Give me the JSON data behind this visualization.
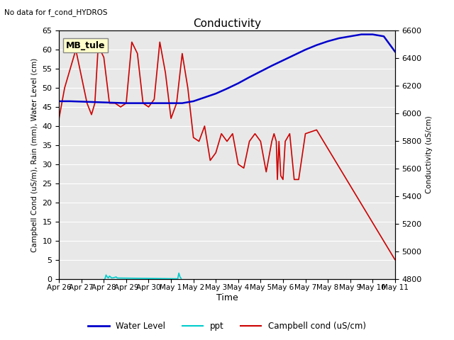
{
  "title": "Conductivity",
  "no_data_text": "No data for f_cond_HYDROS",
  "xlabel": "Time",
  "ylabel_left": "Campbell Cond (uS/m), Rain (mm), Water Level (cm)",
  "ylabel_right": "Conductivity (uS/cm)",
  "legend_label": "MB_tule",
  "ylim_left": [
    0,
    65
  ],
  "ylim_right": [
    4800,
    6600
  ],
  "bg_color": "#e8e8e8",
  "water_level_color": "#0000cc",
  "ppt_color": "#00cccc",
  "campbell_color": "#cc0000",
  "x_tick_labels": [
    "Apr 26",
    "Apr 27",
    "Apr 28",
    "Apr 29",
    "Apr 30",
    "May 1",
    "May 2",
    "May 3",
    "May 4",
    "May 5",
    "May 6",
    "May 7",
    "May 8",
    "May 9",
    "May 10",
    "May 11"
  ],
  "water_level_x": [
    0,
    0.5,
    1,
    1.5,
    2,
    2.5,
    3,
    3.5,
    4,
    4.5,
    5,
    5.5,
    6,
    6.5,
    7,
    7.5,
    8,
    8.5,
    9,
    9.5,
    10,
    10.5,
    11,
    11.5,
    12,
    12.5,
    13,
    13.5,
    14,
    14.5,
    15
  ],
  "water_level_y": [
    46.5,
    46.5,
    46.4,
    46.3,
    46.2,
    46.1,
    46.0,
    46.0,
    46.0,
    46.0,
    46.0,
    46.0,
    46.5,
    47.5,
    48.5,
    49.8,
    51.2,
    52.8,
    54.3,
    55.8,
    57.2,
    58.6,
    60.0,
    61.2,
    62.2,
    63.0,
    63.5,
    64.0,
    64.0,
    63.5,
    59.5
  ],
  "campbell_x": [
    0,
    0.25,
    0.5,
    0.75,
    1.0,
    1.25,
    1.45,
    1.6,
    1.75,
    2.0,
    2.25,
    2.5,
    2.75,
    3.0,
    3.25,
    3.5,
    3.75,
    4.0,
    4.25,
    4.5,
    4.75,
    5.0,
    5.25,
    5.5,
    5.75,
    6.0,
    6.25,
    6.5,
    6.75,
    7.0,
    7.25,
    7.5,
    7.75,
    8.0,
    8.25,
    8.5,
    8.75,
    9.0,
    9.25,
    9.5,
    9.6,
    9.7,
    9.75,
    9.82,
    9.9,
    10.0,
    10.1,
    10.3,
    10.5,
    10.7,
    11.0,
    11.5,
    15.0
  ],
  "campbell_y": [
    42,
    50,
    55,
    60,
    53,
    46,
    43,
    46,
    61,
    58,
    46,
    46,
    45,
    46,
    62,
    59,
    46,
    45,
    47,
    62,
    54,
    42,
    46,
    59,
    50,
    37,
    36,
    40,
    31,
    33,
    38,
    36,
    38,
    30,
    29,
    36,
    38,
    36,
    28,
    36,
    38,
    36,
    26,
    36,
    27,
    26,
    36,
    38,
    26,
    26,
    38,
    39,
    5
  ],
  "ppt_x": [
    2.05,
    2.1,
    2.15,
    2.2,
    2.25,
    2.3,
    2.35,
    2.45,
    2.55,
    2.6,
    5.3,
    5.35,
    5.4,
    5.45
  ],
  "ppt_y": [
    0.0,
    1.0,
    0.5,
    0.2,
    0.7,
    0.5,
    0.2,
    0.3,
    0.5,
    0.2,
    0.0,
    1.5,
    0.5,
    0.1
  ]
}
